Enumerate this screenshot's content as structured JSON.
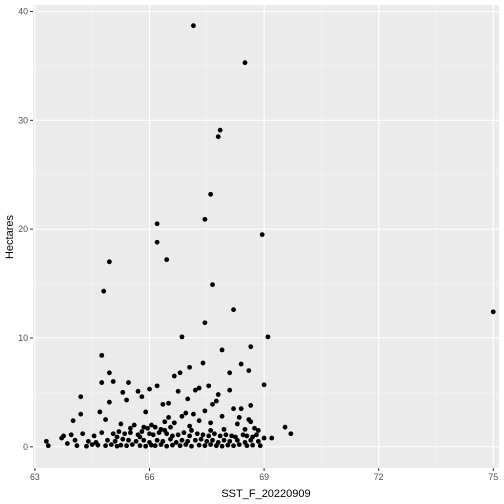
{
  "chart_data": {
    "type": "scatter",
    "title": "",
    "xlabel": "SST_F_20220909",
    "ylabel": "Hectares",
    "xlim": [
      62.95,
      75.15
    ],
    "ylim": [
      -1.95,
      40.6
    ],
    "x_ticks": [
      63,
      66,
      69,
      72,
      75
    ],
    "y_ticks": [
      0,
      10,
      20,
      30,
      40
    ],
    "grid": true,
    "legend": "none",
    "colors": {
      "panel": "#ebebeb",
      "grid_major": "#ffffff",
      "grid_minor": "#f5f5f5",
      "point": "#000000",
      "tick": "#4d4d4d"
    },
    "series": [
      {
        "points": [
          [
            67.15,
            38.7
          ],
          [
            68.5,
            35.3
          ],
          [
            67.85,
            29.1
          ],
          [
            67.8,
            28.5
          ],
          [
            67.6,
            23.2
          ],
          [
            67.45,
            20.9
          ],
          [
            68.95,
            19.5
          ],
          [
            66.2,
            20.5
          ],
          [
            66.2,
            18.8
          ],
          [
            66.45,
            17.2
          ],
          [
            64.95,
            17.0
          ],
          [
            64.8,
            14.3
          ],
          [
            67.65,
            14.9
          ],
          [
            68.2,
            12.6
          ],
          [
            67.45,
            11.4
          ],
          [
            66.85,
            10.1
          ],
          [
            69.1,
            10.1
          ],
          [
            75.0,
            12.4
          ],
          [
            68.65,
            9.2
          ],
          [
            67.9,
            8.9
          ],
          [
            64.75,
            8.4
          ],
          [
            67.4,
            7.7
          ],
          [
            68.4,
            7.6
          ],
          [
            67.05,
            7.3
          ],
          [
            68.1,
            6.8
          ],
          [
            64.95,
            6.8
          ],
          [
            66.65,
            6.5
          ],
          [
            66.8,
            6.8
          ],
          [
            68.6,
            7.0
          ],
          [
            65.05,
            6.0
          ],
          [
            64.75,
            5.9
          ],
          [
            65.45,
            5.9
          ],
          [
            69.0,
            5.7
          ],
          [
            66.2,
            5.6
          ],
          [
            67.3,
            5.4
          ],
          [
            67.55,
            5.6
          ],
          [
            67.2,
            5.2
          ],
          [
            65.3,
            5.0
          ],
          [
            65.7,
            5.1
          ],
          [
            66.0,
            5.3
          ],
          [
            66.75,
            5.1
          ],
          [
            68.1,
            5.2
          ],
          [
            67.8,
            4.8
          ],
          [
            65.8,
            4.6
          ],
          [
            67.0,
            4.4
          ],
          [
            67.75,
            4.2
          ],
          [
            65.4,
            4.3
          ],
          [
            64.2,
            4.6
          ],
          [
            66.5,
            4.0
          ],
          [
            66.35,
            3.9
          ],
          [
            64.95,
            4.1
          ],
          [
            68.65,
            3.8
          ],
          [
            67.65,
            3.9
          ],
          [
            68.2,
            3.5
          ],
          [
            68.4,
            3.5
          ],
          [
            64.7,
            3.2
          ],
          [
            64.2,
            3.0
          ],
          [
            66.95,
            3.1
          ],
          [
            67.15,
            3.0
          ],
          [
            65.9,
            3.2
          ],
          [
            67.45,
            3.3
          ],
          [
            67.9,
            2.8
          ],
          [
            66.5,
            2.7
          ],
          [
            68.6,
            2.5
          ],
          [
            68.65,
            2.3
          ],
          [
            64.85,
            2.5
          ],
          [
            64.0,
            2.4
          ],
          [
            65.25,
            2.1
          ],
          [
            65.6,
            2.0
          ],
          [
            66.05,
            2.0
          ],
          [
            66.65,
            2.2
          ],
          [
            67.3,
            2.4
          ],
          [
            68.3,
            2.1
          ],
          [
            68.75,
            1.7
          ],
          [
            69.55,
            1.8
          ],
          [
            69.7,
            1.2
          ],
          [
            65.85,
            1.8
          ],
          [
            65.95,
            1.7
          ],
          [
            66.15,
            1.8
          ],
          [
            66.3,
            1.6
          ],
          [
            66.4,
            1.5
          ],
          [
            66.55,
            1.8
          ],
          [
            67.1,
            1.5
          ],
          [
            67.6,
            1.5
          ],
          [
            67.95,
            1.6
          ],
          [
            68.5,
            1.6
          ],
          [
            68.85,
            1.5
          ],
          [
            63.75,
            1.0
          ],
          [
            63.95,
            1.1
          ],
          [
            64.25,
            1.2
          ],
          [
            64.55,
            1.0
          ],
          [
            64.75,
            1.3
          ],
          [
            65.05,
            1.2
          ],
          [
            65.2,
            1.4
          ],
          [
            65.35,
            1.2
          ],
          [
            65.5,
            1.3
          ],
          [
            65.7,
            1.1
          ],
          [
            65.8,
            1.4
          ],
          [
            66.0,
            1.2
          ],
          [
            66.1,
            1.1
          ],
          [
            66.25,
            1.3
          ],
          [
            66.45,
            1.2
          ],
          [
            66.6,
            1.0
          ],
          [
            66.75,
            1.1
          ],
          [
            66.9,
            1.3
          ],
          [
            67.05,
            1.0
          ],
          [
            67.25,
            1.2
          ],
          [
            67.4,
            1.1
          ],
          [
            67.55,
            1.0
          ],
          [
            67.7,
            1.2
          ],
          [
            67.85,
            1.0
          ],
          [
            68.0,
            1.1
          ],
          [
            68.15,
            1.0
          ],
          [
            68.25,
            0.9
          ],
          [
            68.45,
            1.1
          ],
          [
            68.55,
            1.0
          ],
          [
            68.7,
            0.9
          ],
          [
            68.8,
            1.1
          ],
          [
            69.0,
            0.8
          ],
          [
            69.2,
            0.8
          ],
          [
            63.3,
            0.5
          ],
          [
            63.7,
            0.8
          ],
          [
            63.85,
            0.3
          ],
          [
            64.05,
            0.6
          ],
          [
            64.4,
            0.5
          ],
          [
            64.6,
            0.4
          ],
          [
            64.9,
            0.6
          ],
          [
            65.1,
            0.5
          ],
          [
            65.3,
            0.7
          ],
          [
            65.45,
            0.6
          ],
          [
            65.65,
            0.5
          ],
          [
            65.85,
            0.6
          ],
          [
            66.0,
            0.4
          ],
          [
            66.2,
            0.6
          ],
          [
            66.35,
            0.5
          ],
          [
            66.55,
            0.7
          ],
          [
            66.7,
            0.4
          ],
          [
            66.85,
            0.6
          ],
          [
            67.0,
            0.5
          ],
          [
            67.2,
            0.6
          ],
          [
            67.35,
            0.7
          ],
          [
            67.5,
            0.5
          ],
          [
            67.65,
            0.6
          ],
          [
            67.8,
            0.4
          ],
          [
            67.95,
            0.6
          ],
          [
            68.1,
            0.5
          ],
          [
            68.3,
            0.6
          ],
          [
            68.5,
            0.4
          ],
          [
            68.65,
            0.6
          ],
          [
            68.85,
            0.5
          ],
          [
            63.35,
            0.1
          ],
          [
            64.1,
            0.1
          ],
          [
            64.35,
            0.05
          ],
          [
            64.5,
            0.2
          ],
          [
            64.65,
            0.15
          ],
          [
            64.85,
            0.1
          ],
          [
            65.0,
            0.2
          ],
          [
            65.15,
            0.05
          ],
          [
            65.25,
            0.15
          ],
          [
            65.4,
            0.1
          ],
          [
            65.55,
            0.2
          ],
          [
            65.75,
            0.1
          ],
          [
            65.9,
            0.05
          ],
          [
            66.05,
            0.15
          ],
          [
            66.15,
            0.1
          ],
          [
            66.3,
            0.2
          ],
          [
            66.45,
            0.05
          ],
          [
            66.6,
            0.15
          ],
          [
            66.8,
            0.1
          ],
          [
            66.95,
            0.2
          ],
          [
            67.1,
            0.05
          ],
          [
            67.3,
            0.15
          ],
          [
            67.45,
            0.1
          ],
          [
            67.6,
            0.2
          ],
          [
            67.75,
            0.1
          ],
          [
            67.9,
            0.05
          ],
          [
            68.05,
            0.15
          ],
          [
            68.2,
            0.1
          ],
          [
            68.35,
            0.2
          ],
          [
            68.55,
            0.1
          ],
          [
            68.7,
            0.15
          ],
          [
            68.9,
            0.1
          ],
          [
            65.5,
            1.7
          ],
          [
            65.75,
            0.9
          ],
          [
            66.4,
            2.3
          ],
          [
            67.05,
            1.9
          ],
          [
            66.85,
            2.8
          ],
          [
            67.6,
            2.2
          ],
          [
            68.35,
            2.7
          ],
          [
            65.15,
            0.9
          ]
        ]
      }
    ]
  }
}
